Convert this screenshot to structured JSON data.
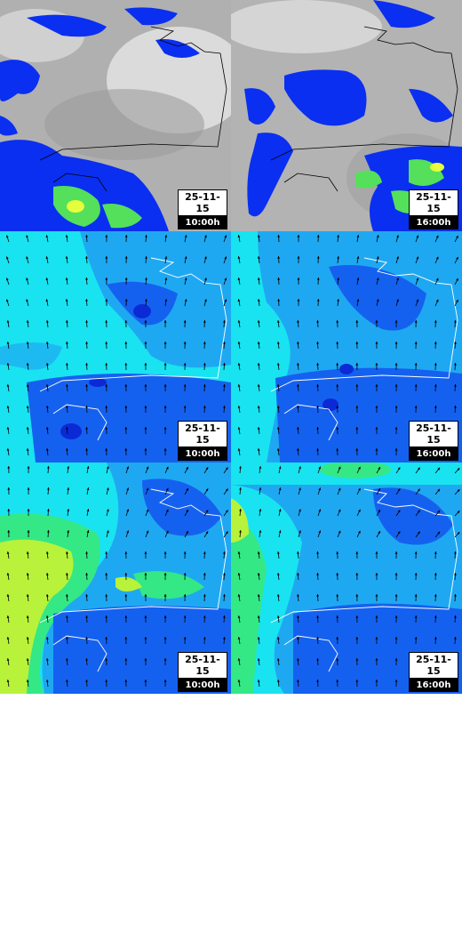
{
  "panels": [
    {
      "id": "cloud-10",
      "variable": "cloud-precipitation",
      "date": "25-11-15",
      "time": "10:00h"
    },
    {
      "id": "cloud-16",
      "variable": "cloud-precipitation",
      "date": "25-11-15",
      "time": "16:00h"
    },
    {
      "id": "wind-a-10",
      "variable": "wind",
      "date": "25-11-15",
      "time": "10:00h"
    },
    {
      "id": "wind-a-16",
      "variable": "wind",
      "date": "25-11-15",
      "time": "16:00h"
    },
    {
      "id": "wind-b-10",
      "variable": "wind",
      "date": "25-11-15",
      "time": "10:00h"
    },
    {
      "id": "wind-b-16",
      "variable": "wind",
      "date": "25-11-15",
      "time": "16:00h"
    }
  ],
  "colors": {
    "cloud_grey": "#b4b4b4",
    "precip_blue": "#0a2ff0",
    "precip_green": "#54e05a",
    "precip_yellow": "#e6ff3c",
    "wind_cyan": "#19e3f0",
    "wind_sky": "#1fa8f2",
    "wind_blue": "#1561ef",
    "wind_dark": "#0b2ad6",
    "wind_green": "#34e886",
    "wind_lime": "#b8f23a",
    "coastline": "#ffffff",
    "arrow": "#000000"
  }
}
